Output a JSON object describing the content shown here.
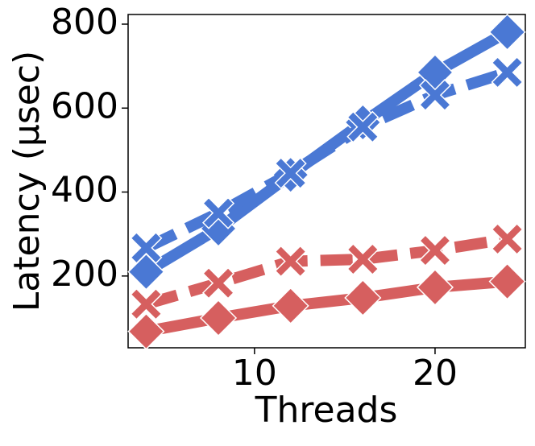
{
  "chart_data": {
    "type": "line",
    "xlabel": "Threads",
    "ylabel": "Latency (μsec)",
    "x": [
      4,
      8,
      12,
      16,
      20,
      24
    ],
    "series": [
      {
        "color": "#4a78d4",
        "marker": "diamond",
        "dash": "solid",
        "values": [
          210,
          313,
          441,
          566,
          685,
          781
        ]
      },
      {
        "color": "#4a78d4",
        "marker": "x",
        "dash": "dashed",
        "values": [
          267,
          350,
          445,
          555,
          631,
          685
        ]
      },
      {
        "color": "#d65f5f",
        "marker": "x",
        "dash": "dashed",
        "values": [
          133,
          183,
          235,
          240,
          261,
          288
        ]
      },
      {
        "color": "#d65f5f",
        "marker": "diamond",
        "dash": "solid",
        "values": [
          68,
          100,
          129,
          148,
          173,
          187
        ]
      }
    ],
    "xlim": [
      3,
      25
    ],
    "ylim": [
      29,
      823
    ],
    "xticks": [
      10,
      20
    ],
    "yticks": [
      200,
      400,
      600,
      800
    ]
  }
}
